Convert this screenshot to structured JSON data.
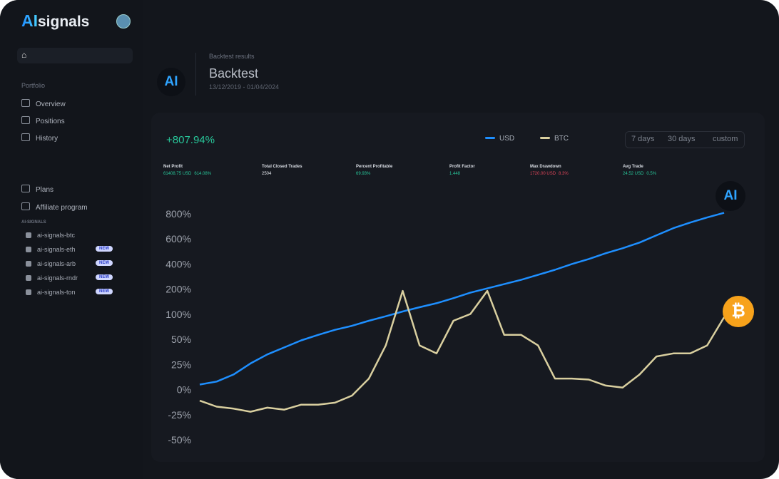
{
  "sidebar": {
    "logo_ai": "AI",
    "logo_text": "signals",
    "portfolio": "Portfolio",
    "nav": [
      "Overview",
      "Positions",
      "History"
    ],
    "nav2": [
      "Plans",
      "Affiliate program"
    ],
    "section": "AI-SIGNALS",
    "channels": [
      {
        "name": "ai-signals-btc"
      },
      {
        "name": "ai-signals-eth",
        "badge": "NEW"
      },
      {
        "name": "ai-signals-arb",
        "badge": "NEW"
      },
      {
        "name": "ai-signals-rndr",
        "badge": "NEW"
      },
      {
        "name": "ai-signals-ton",
        "badge": "NEW"
      }
    ]
  },
  "header": {
    "logo": "AI",
    "breadcrumb": "Backtest results",
    "title": "Backtest",
    "dates": "13/12/2019 - 01/04/2024"
  },
  "summary": {
    "total": "+807.94%",
    "timeframes": [
      "7 days",
      "30 days",
      "custom"
    ]
  },
  "stats": [
    {
      "label": "Net Profit",
      "value": "61408.75 USD",
      "pct": "614.08%"
    },
    {
      "label": "Total Closed Trades",
      "value": "2504"
    },
    {
      "label": "Percent Profitable",
      "value": "69.93%"
    },
    {
      "label": "Profit Factor",
      "value": "1.448"
    },
    {
      "label": "Max Drawdown",
      "value": "1720.00 USD",
      "pct": "8.3%"
    },
    {
      "label": "Avg Trade",
      "value": "24.52 USD",
      "pct": "0.5%"
    }
  ],
  "chart_data": {
    "type": "line",
    "ylim": [
      -50,
      800
    ],
    "yticks": [
      {
        "value": -50,
        "label": "-50%"
      },
      {
        "value": -25,
        "label": "-25%"
      },
      {
        "value": 0,
        "label": "0%"
      },
      {
        "value": 25,
        "label": "25%"
      },
      {
        "value": 50,
        "label": "50%"
      },
      {
        "value": 100,
        "label": "100%"
      },
      {
        "value": 200,
        "label": "200%"
      },
      {
        "value": 400,
        "label": "400%"
      },
      {
        "value": 600,
        "label": "600%"
      },
      {
        "value": 800,
        "label": "800%"
      }
    ],
    "series": [
      {
        "name": "USD",
        "color": "#1e8fff",
        "values": [
          5,
          8,
          15,
          26,
          35,
          42,
          49,
          59,
          69,
          77,
          87,
          96,
          111,
          128,
          144,
          164,
          186,
          206,
          240,
          274,
          314,
          354,
          400,
          440,
          486,
          526,
          571,
          629,
          686,
          731,
          771,
          808
        ]
      },
      {
        "name": "BTC",
        "color": "#d9cf9f",
        "values": [
          -11,
          -17,
          -19,
          -22,
          -18,
          -20,
          -15,
          -15,
          -13,
          -6,
          11,
          44,
          193,
          44,
          36,
          87,
          101,
          193,
          59,
          59,
          44,
          11,
          11,
          10,
          4,
          2,
          15,
          33,
          36,
          36,
          44,
          94
        ]
      }
    ]
  }
}
